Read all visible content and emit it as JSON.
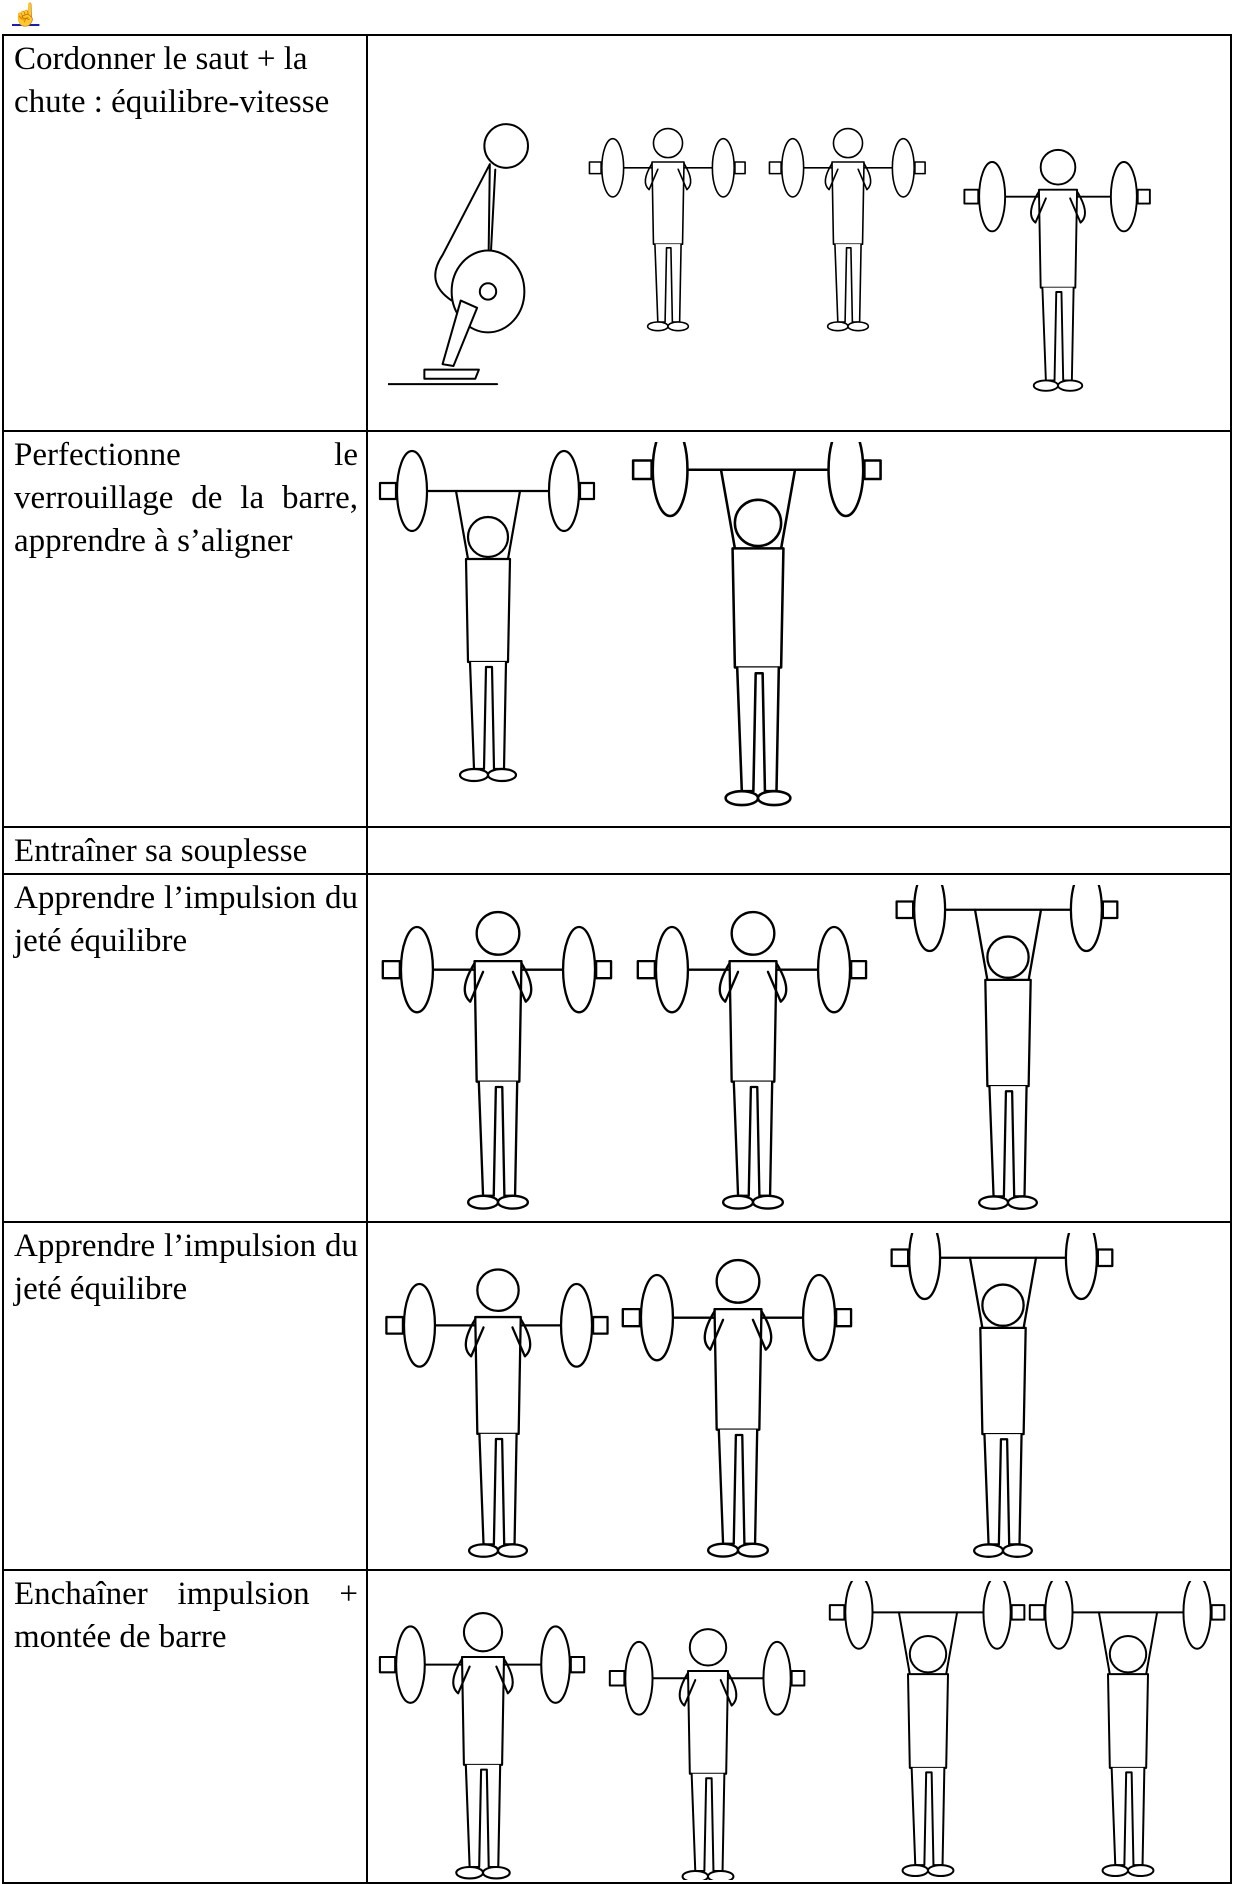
{
  "header_icon": "☝",
  "table": {
    "rows": [
      [
        "Cordonner le saut + la chute : équilibre-vitesse"
      ],
      [
        "Perfectionne le verrouillage de la barre, apprendre à s’aligner"
      ],
      [
        "Entraîner sa souplesse"
      ],
      [
        "Apprendre l’impulsion du jeté équilibre"
      ],
      [
        "Apprendre l’impulsion du jeté équilibre"
      ],
      [
        "Enchaîner impulsion + montée de barre"
      ]
    ]
  }
}
